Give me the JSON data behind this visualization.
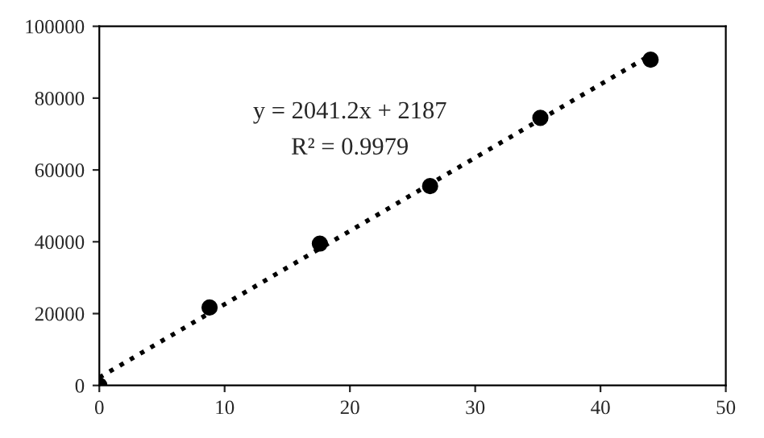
{
  "chart_data": {
    "type": "scatter",
    "series": [
      {
        "color": "#000000",
        "marker": "circle",
        "x": [
          0,
          8.8,
          17.6,
          26.4,
          35.2,
          44
        ],
        "values": [
          0,
          21700,
          39500,
          55500,
          74500,
          90700
        ]
      },
      {
        "type": "line",
        "color": "#000000",
        "line_style": "dotted",
        "marker": "none",
        "x": [
          0,
          44
        ],
        "values": [
          2200,
          92000
        ]
      }
    ],
    "annotations": [
      "y = 2041.2x + 2187",
      "R² = 0.9979"
    ],
    "xlim": [
      0,
      50
    ],
    "xticks": [
      0,
      10,
      20,
      30,
      40,
      50
    ],
    "ylim": [
      0,
      100000
    ],
    "yticks": [
      0,
      20000,
      40000,
      60000,
      80000,
      100000
    ],
    "grid": false,
    "legend": false
  }
}
